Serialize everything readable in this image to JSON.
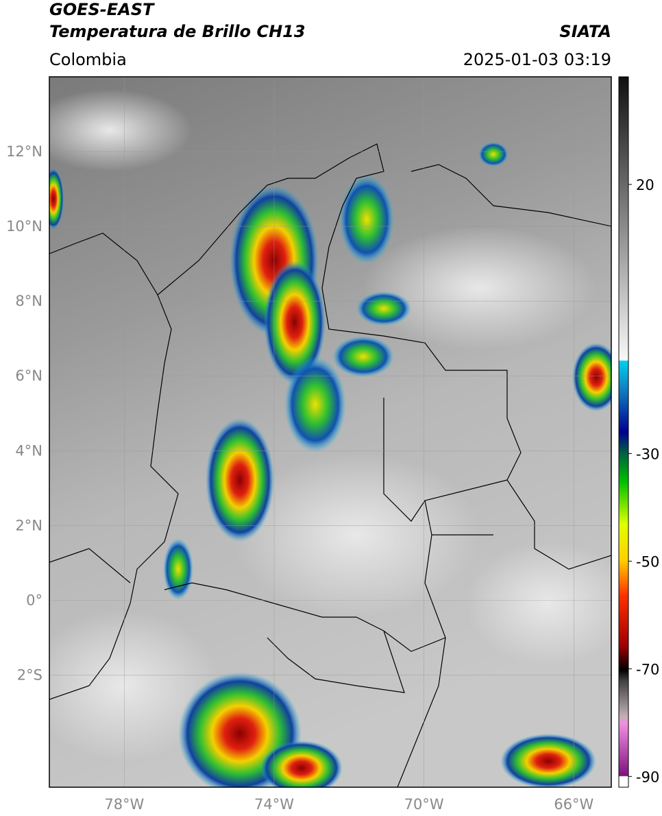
{
  "header": {
    "title_line1": "GOES-EAST",
    "title_line2": "Temperatura de Brillo CH13",
    "region": "Colombia",
    "source": "SIATA",
    "timestamp": "2025-01-03 03:19"
  },
  "map": {
    "lon_range": [
      -80,
      -65
    ],
    "lat_range": [
      -5,
      14
    ],
    "lat_ticks": [
      {
        "value": 12,
        "label": "12°N"
      },
      {
        "value": 10,
        "label": "10°N"
      },
      {
        "value": 8,
        "label": "8°N"
      },
      {
        "value": 6,
        "label": "6°N"
      },
      {
        "value": 4,
        "label": "4°N"
      },
      {
        "value": 2,
        "label": "2°N"
      },
      {
        "value": 0,
        "label": "0°"
      },
      {
        "value": -2,
        "label": "2°S"
      }
    ],
    "lon_ticks": [
      {
        "value": -78,
        "label": "78°W"
      },
      {
        "value": -74,
        "label": "74°W"
      },
      {
        "value": -70,
        "label": "70°W"
      },
      {
        "value": -66,
        "label": "66°W"
      }
    ]
  },
  "colorbar": {
    "range": [
      -92,
      40
    ],
    "ticks": [
      20,
      -30,
      -50,
      -70,
      -90
    ]
  }
}
